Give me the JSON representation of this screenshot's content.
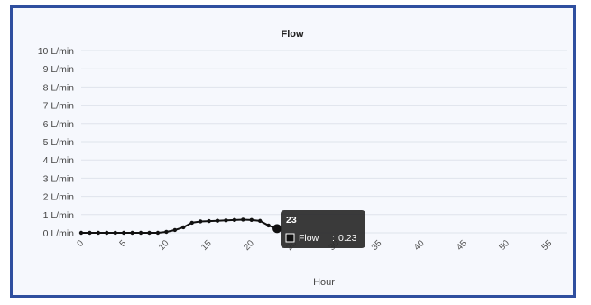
{
  "chart_data": {
    "type": "line",
    "title": "Flow",
    "xlabel": "Hour",
    "ylabel": "",
    "xlim": [
      0,
      57
    ],
    "ylim": [
      0,
      10
    ],
    "x_ticks": [
      "0",
      "5",
      "10",
      "15",
      "20",
      "25",
      "30",
      "35",
      "40",
      "45",
      "50",
      "55"
    ],
    "y_ticks": [
      "0 L/min",
      "1 L/min",
      "2 L/min",
      "3 L/min",
      "4 L/min",
      "5 L/min",
      "6 L/min",
      "7 L/min",
      "8 L/min",
      "9 L/min",
      "10 L/min"
    ],
    "grid": true,
    "series": [
      {
        "name": "Flow",
        "color": "#111111",
        "x": [
          0,
          1,
          2,
          3,
          4,
          5,
          6,
          7,
          8,
          9,
          10,
          11,
          12,
          13,
          14,
          15,
          16,
          17,
          18,
          19,
          20,
          21,
          22,
          23
        ],
        "y": [
          0.0,
          0.0,
          0.0,
          0.0,
          0.0,
          0.0,
          0.0,
          0.0,
          0.0,
          0.0,
          0.05,
          0.15,
          0.3,
          0.55,
          0.62,
          0.64,
          0.66,
          0.68,
          0.7,
          0.72,
          0.7,
          0.65,
          0.4,
          0.23
        ]
      }
    ],
    "tooltip": {
      "x_label": "23",
      "series": "Flow",
      "value": "0.23",
      "separator": ":"
    }
  }
}
